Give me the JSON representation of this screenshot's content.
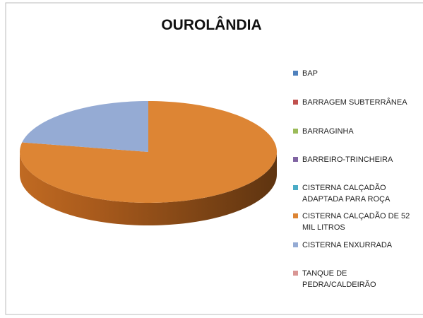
{
  "chart_data": {
    "type": "pie3d",
    "title": "OUROLÂNDIA",
    "categories": [
      "BAP",
      "BARRAGEM SUBTERRÂNEA",
      "BARRAGINHA",
      "BARREIRO-TRINCHEIRA",
      "CISTERNA CALÇADÃO ADAPTADA PARA ROÇA",
      "CISTERNA CALÇADÃO DE 52 MIL LITROS",
      "CISTERNA ENXURRADA",
      "TANQUE DE PEDRA/CALDEIRÃO"
    ],
    "values": [
      0,
      0,
      0,
      0,
      0,
      78,
      22,
      0
    ],
    "colors": [
      "#4f81bd",
      "#c0504d",
      "#9bbb59",
      "#8064a2",
      "#4bacc6",
      "#dd8534",
      "#95abd4",
      "#d99694"
    ],
    "legend": "right"
  }
}
